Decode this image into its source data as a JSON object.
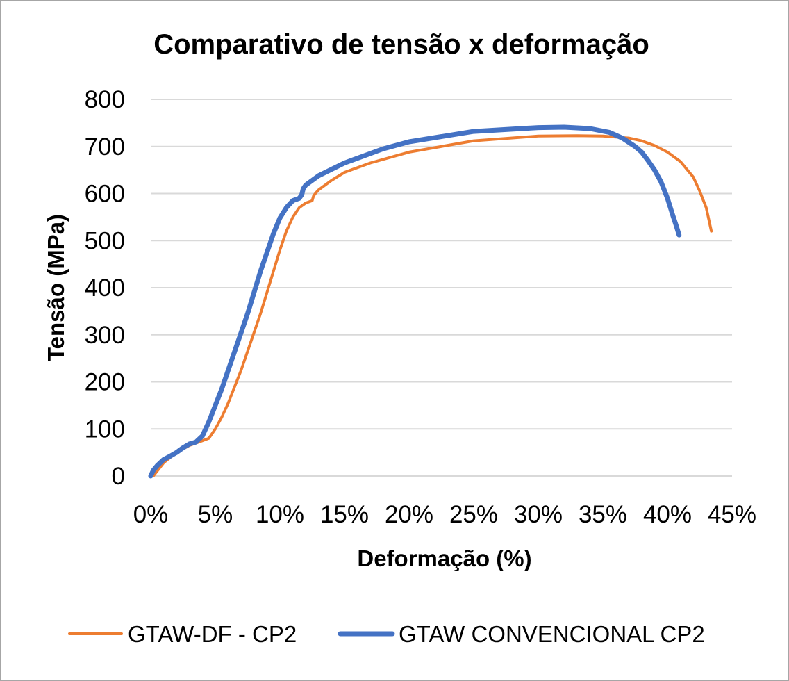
{
  "chart_data": {
    "type": "line",
    "title": "Comparativo de tensão x deformação",
    "xlabel": "Deformação (%)",
    "ylabel": "Tensão (MPa)",
    "xlim": [
      0,
      0.45
    ],
    "ylim": [
      0,
      800
    ],
    "x_ticks": [
      0,
      0.05,
      0.1,
      0.15,
      0.2,
      0.25,
      0.3,
      0.35,
      0.4,
      0.45
    ],
    "x_tick_labels": [
      "0%",
      "5%",
      "10%",
      "15%",
      "20%",
      "25%",
      "30%",
      "35%",
      "40%",
      "45%"
    ],
    "y_ticks": [
      0,
      100,
      200,
      300,
      400,
      500,
      600,
      700,
      800
    ],
    "y_tick_labels": [
      "0",
      "100",
      "200",
      "300",
      "400",
      "500",
      "600",
      "700",
      "800"
    ],
    "grid": "horizontal",
    "legend_position": "bottom",
    "series": [
      {
        "name": "GTAW-DF - CP2",
        "color": "#ED7D31",
        "x": [
          0.002,
          0.01,
          0.02,
          0.03,
          0.04,
          0.045,
          0.05,
          0.055,
          0.06,
          0.065,
          0.07,
          0.075,
          0.08,
          0.085,
          0.09,
          0.095,
          0.1,
          0.105,
          0.11,
          0.115,
          0.12,
          0.125,
          0.126,
          0.128,
          0.13,
          0.14,
          0.15,
          0.17,
          0.2,
          0.25,
          0.3,
          0.33,
          0.35,
          0.37,
          0.38,
          0.39,
          0.4,
          0.41,
          0.42,
          0.425,
          0.43,
          0.434
        ],
        "y": [
          0,
          28,
          50,
          65,
          75,
          80,
          100,
          125,
          155,
          190,
          225,
          265,
          305,
          345,
          390,
          435,
          480,
          520,
          550,
          570,
          580,
          585,
          595,
          602,
          608,
          628,
          645,
          665,
          688,
          712,
          722,
          723,
          722,
          718,
          712,
          702,
          688,
          668,
          635,
          605,
          570,
          520
        ]
      },
      {
        "name": "GTAW CONVENCIONAL CP2",
        "color": "#4472C4",
        "x": [
          0.0,
          0.002,
          0.005,
          0.01,
          0.015,
          0.02,
          0.025,
          0.03,
          0.035,
          0.04,
          0.045,
          0.05,
          0.055,
          0.06,
          0.065,
          0.07,
          0.075,
          0.08,
          0.085,
          0.09,
          0.095,
          0.1,
          0.105,
          0.11,
          0.115,
          0.117,
          0.118,
          0.12,
          0.13,
          0.15,
          0.18,
          0.2,
          0.25,
          0.3,
          0.32,
          0.34,
          0.355,
          0.365,
          0.375,
          0.38,
          0.385,
          0.39,
          0.395,
          0.4,
          0.404,
          0.407,
          0.409
        ],
        "y": [
          0,
          12,
          22,
          35,
          42,
          50,
          60,
          68,
          72,
          85,
          115,
          150,
          185,
          225,
          265,
          305,
          345,
          390,
          435,
          475,
          515,
          548,
          570,
          585,
          590,
          598,
          610,
          618,
          638,
          665,
          695,
          710,
          732,
          740,
          741,
          738,
          730,
          718,
          700,
          688,
          670,
          650,
          625,
          590,
          555,
          530,
          512
        ]
      }
    ]
  }
}
